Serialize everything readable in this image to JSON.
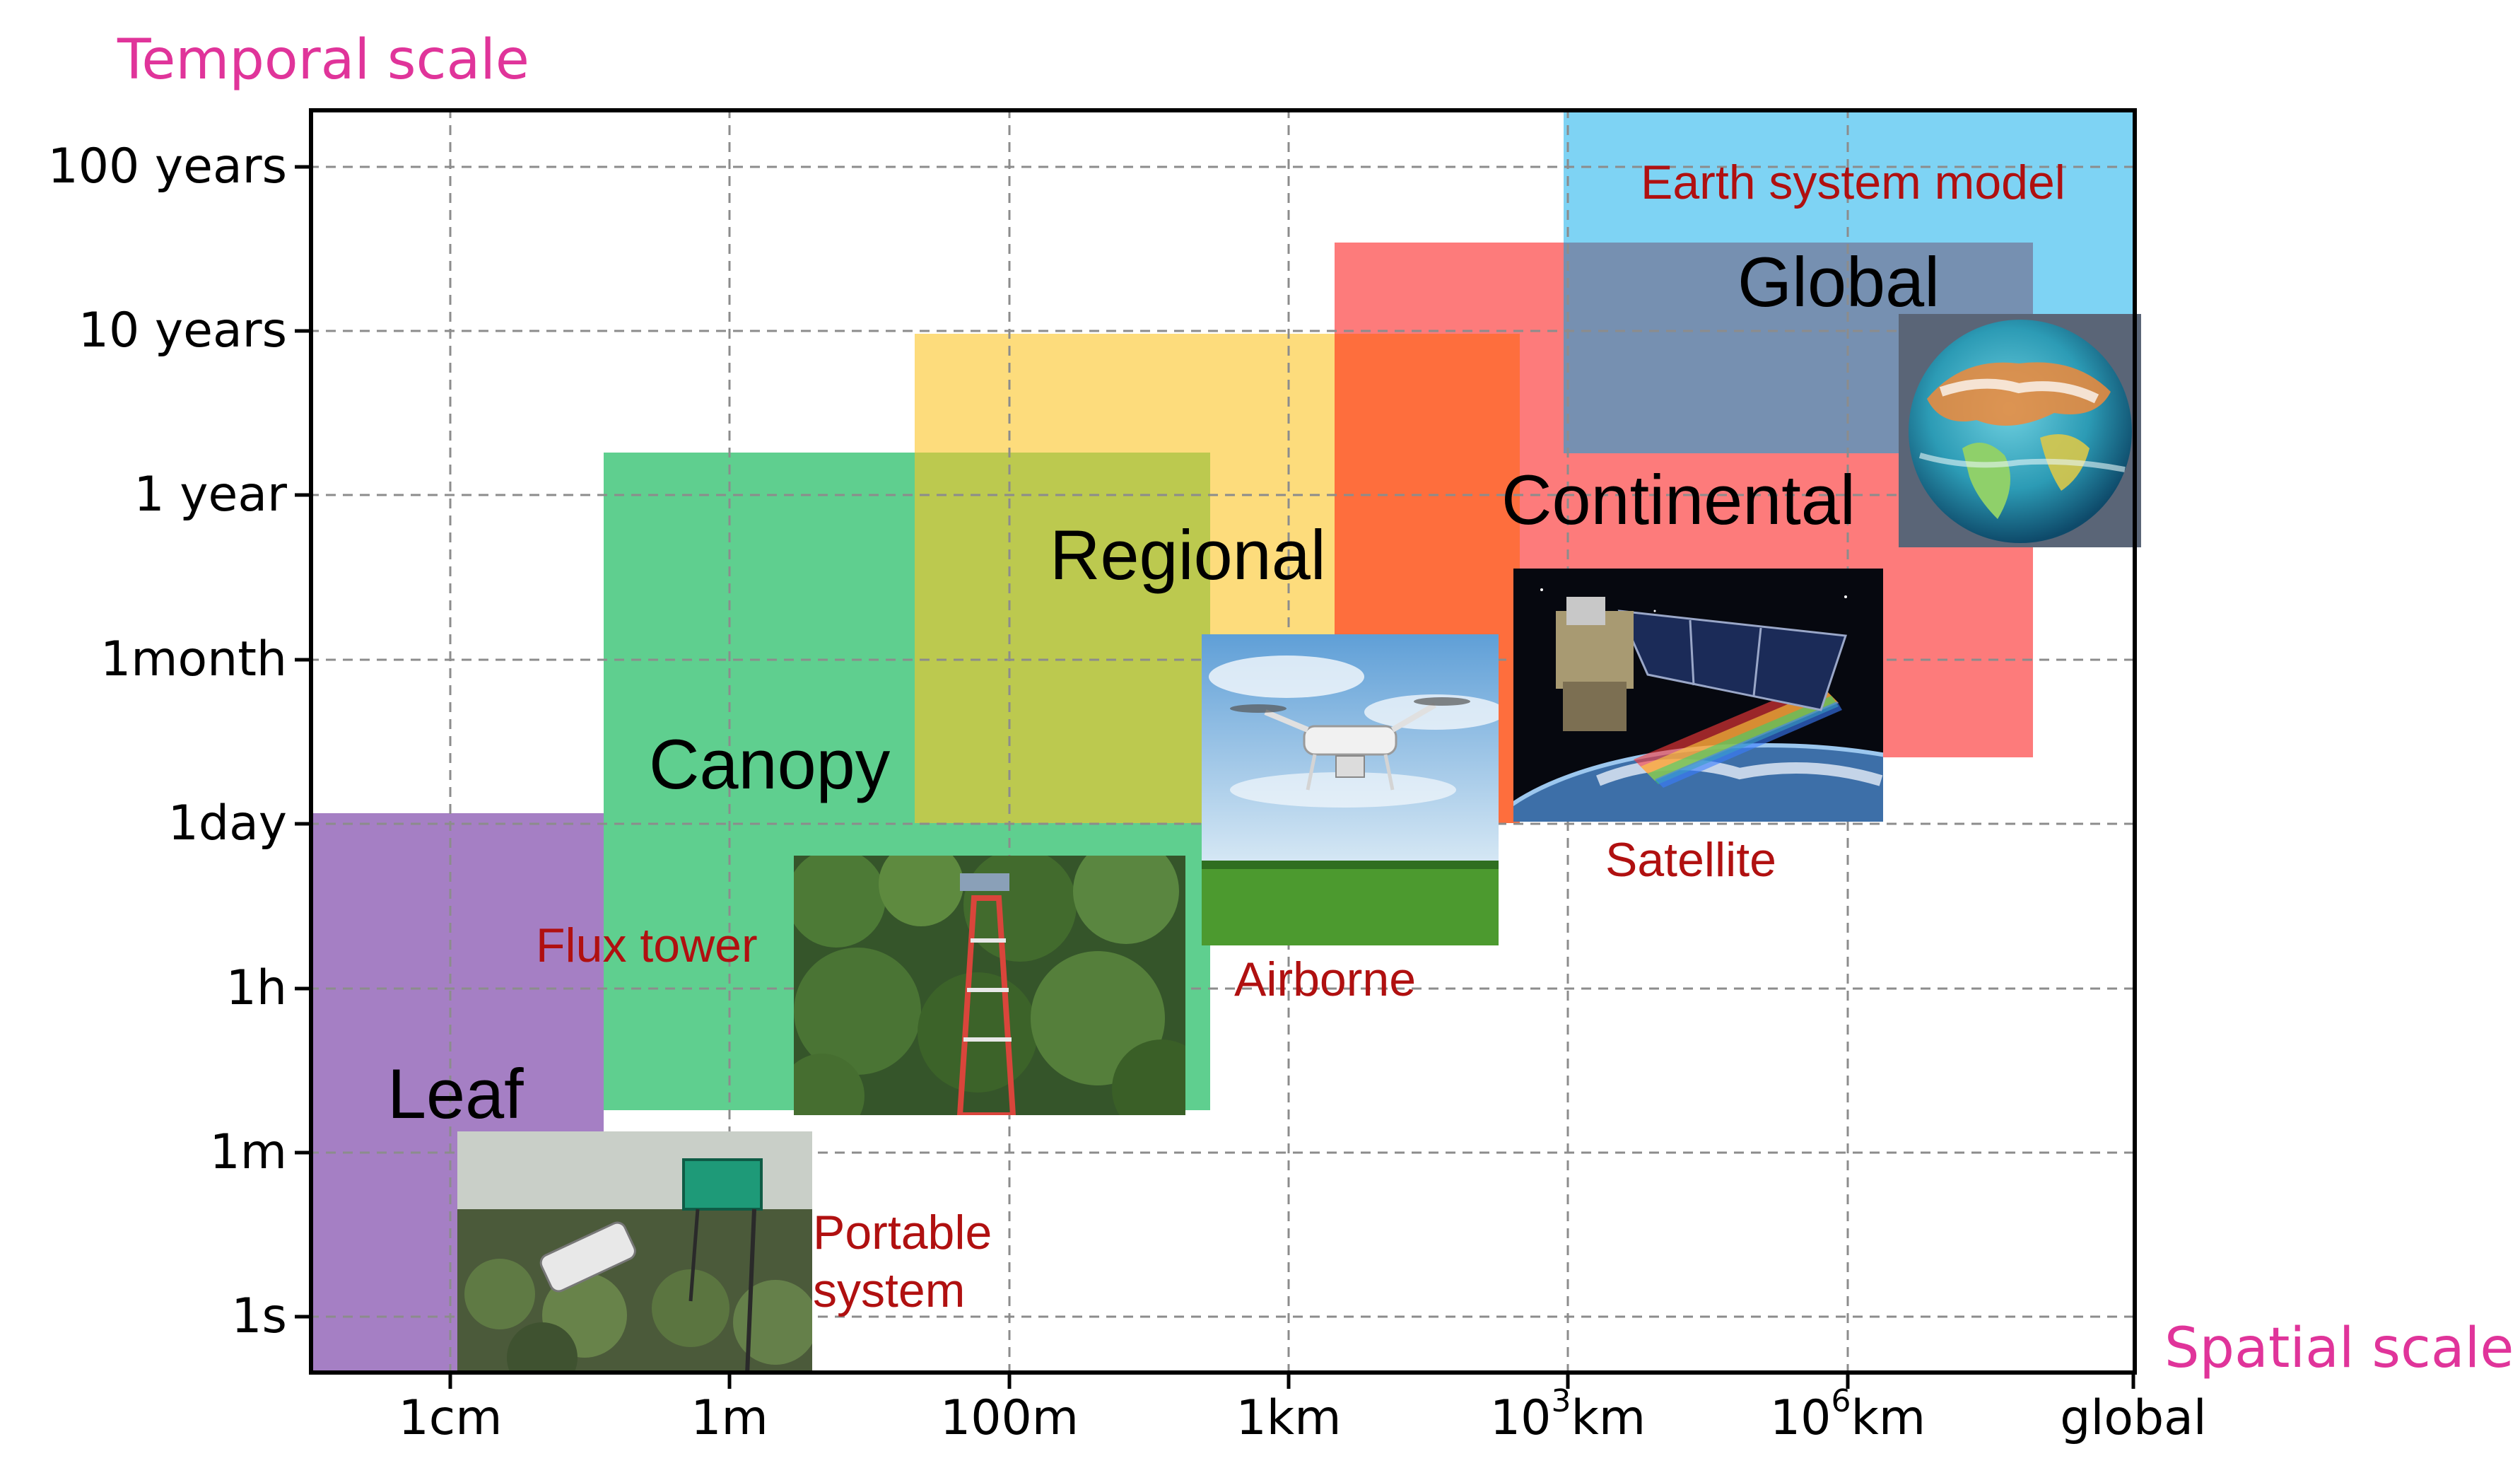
{
  "axes": {
    "y_title": "Temporal scale",
    "x_title": "Spatial scale",
    "y_ticks": [
      "100 years",
      "10 years",
      "1 year",
      "1month",
      "1day",
      "1h",
      "1m",
      "1s"
    ],
    "x_ticks": [
      {
        "base": "1cm",
        "sup": ""
      },
      {
        "base": "1m",
        "sup": ""
      },
      {
        "base": "100m",
        "sup": ""
      },
      {
        "base": "1km",
        "sup": ""
      },
      {
        "base": "10",
        "sup": "3",
        "unit": "km"
      },
      {
        "base": "10",
        "sup": "6",
        "unit": "km"
      },
      {
        "base": "global",
        "sup": ""
      }
    ]
  },
  "scales": {
    "leaf": "Leaf",
    "canopy": "Canopy",
    "regional": "Regional",
    "continental": "Continental",
    "global": "Global"
  },
  "instruments": {
    "earth_system_model": "Earth system model",
    "satellite": "Satellite",
    "airborne": "Airborne",
    "flux_tower": "Flux tower",
    "portable_line1": "Portable",
    "portable_line2": "system"
  },
  "colors": {
    "leaf": "#a57fc4",
    "canopy": "#5fcf8f",
    "regional": "#fddc7c",
    "continental": "#fd7b7b",
    "global": "#7690b1",
    "earth_system_model": "#7ed3f4",
    "title_pink": "#e0349a",
    "instrument_red": "#b01010"
  }
}
